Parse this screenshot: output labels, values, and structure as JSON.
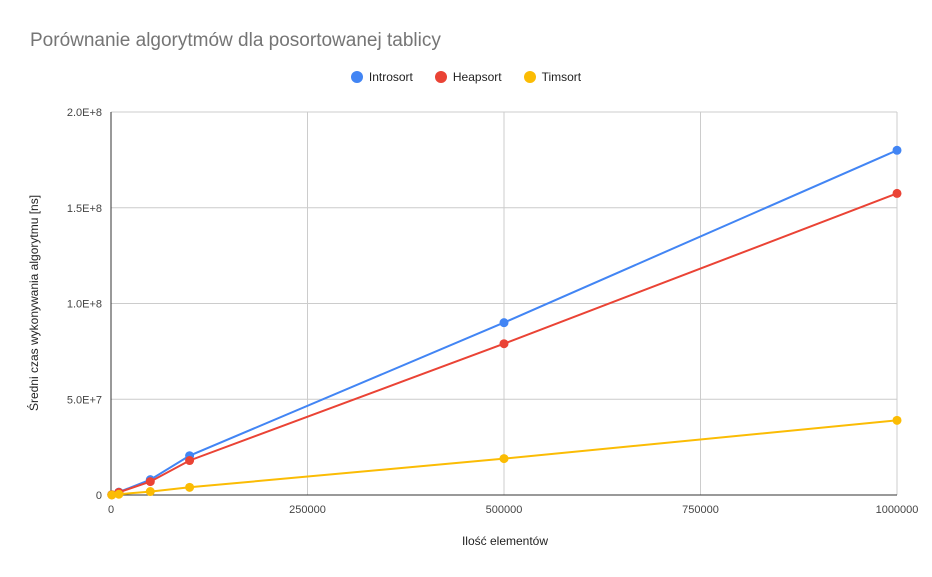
{
  "chart_data": {
    "type": "line",
    "title": "Porównanie algorytmów dla posortowanej tablicy",
    "xlabel": "Ilość elementów",
    "ylabel": "Średni czas wykonywania algorytmu [ns]",
    "x": [
      1000,
      10000,
      50000,
      100000,
      500000,
      1000000
    ],
    "xlim": [
      0,
      1000000
    ],
    "ylim": [
      0,
      200000000
    ],
    "x_ticks": [
      0,
      250000,
      500000,
      750000,
      1000000
    ],
    "x_tick_labels": [
      "0",
      "250000",
      "500000",
      "750000",
      "1000000"
    ],
    "y_ticks": [
      0,
      50000000,
      100000000,
      150000000,
      200000000
    ],
    "y_tick_labels": [
      "0",
      "5.0E+7",
      "1.0E+8",
      "1.5E+8",
      "2.0E+8"
    ],
    "grid": true,
    "legend_position": "top",
    "series": [
      {
        "name": "Introsort",
        "color": "#4285F4",
        "values": [
          150000,
          1500000,
          8000000,
          20500000,
          90000000,
          180000000
        ]
      },
      {
        "name": "Heapsort",
        "color": "#EA4335",
        "values": [
          150000,
          1400000,
          7000000,
          18000000,
          79000000,
          157500000
        ]
      },
      {
        "name": "Timsort",
        "color": "#FBBC04",
        "values": [
          30000,
          400000,
          1800000,
          4000000,
          19000000,
          39000000
        ]
      }
    ]
  }
}
